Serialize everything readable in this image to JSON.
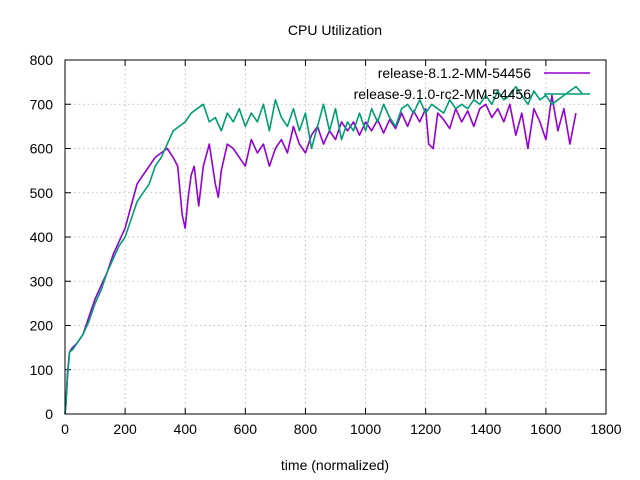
{
  "chart_data": {
    "type": "line",
    "title": "CPU Utilization",
    "xlabel": "time (normalized)",
    "ylabel": "",
    "xlim": [
      0,
      1800
    ],
    "ylim": [
      0,
      800
    ],
    "xticks": [
      "0",
      "200",
      "400",
      "600",
      "800",
      "1000",
      "1200",
      "1400",
      "1600",
      "1800"
    ],
    "yticks": [
      "0",
      "100",
      "200",
      "300",
      "400",
      "500",
      "600",
      "700",
      "800"
    ],
    "grid": true,
    "legend_position": "top-right",
    "series": [
      {
        "name": "release-8.1.2-MM-54456",
        "color": "#9400d3",
        "points": [
          [
            0,
            0
          ],
          [
            3,
            20
          ],
          [
            8,
            90
          ],
          [
            15,
            140
          ],
          [
            25,
            150
          ],
          [
            40,
            160
          ],
          [
            60,
            180
          ],
          [
            80,
            220
          ],
          [
            100,
            260
          ],
          [
            120,
            290
          ],
          [
            140,
            320
          ],
          [
            160,
            360
          ],
          [
            180,
            390
          ],
          [
            200,
            420
          ],
          [
            220,
            470
          ],
          [
            240,
            520
          ],
          [
            260,
            540
          ],
          [
            280,
            560
          ],
          [
            300,
            580
          ],
          [
            320,
            590
          ],
          [
            340,
            600
          ],
          [
            360,
            580
          ],
          [
            375,
            560
          ],
          [
            390,
            450
          ],
          [
            400,
            420
          ],
          [
            410,
            490
          ],
          [
            420,
            540
          ],
          [
            430,
            560
          ],
          [
            445,
            470
          ],
          [
            460,
            560
          ],
          [
            480,
            610
          ],
          [
            500,
            520
          ],
          [
            510,
            490
          ],
          [
            520,
            550
          ],
          [
            540,
            610
          ],
          [
            560,
            600
          ],
          [
            580,
            580
          ],
          [
            600,
            560
          ],
          [
            620,
            620
          ],
          [
            640,
            590
          ],
          [
            660,
            610
          ],
          [
            680,
            560
          ],
          [
            700,
            600
          ],
          [
            720,
            620
          ],
          [
            740,
            590
          ],
          [
            760,
            650
          ],
          [
            780,
            610
          ],
          [
            800,
            590
          ],
          [
            820,
            630
          ],
          [
            840,
            650
          ],
          [
            860,
            610
          ],
          [
            880,
            640
          ],
          [
            900,
            620
          ],
          [
            920,
            660
          ],
          [
            940,
            640
          ],
          [
            960,
            660
          ],
          [
            980,
            630
          ],
          [
            1000,
            660
          ],
          [
            1020,
            640
          ],
          [
            1040,
            665
          ],
          [
            1060,
            635
          ],
          [
            1080,
            665
          ],
          [
            1100,
            645
          ],
          [
            1120,
            680
          ],
          [
            1140,
            650
          ],
          [
            1160,
            685
          ],
          [
            1180,
            660
          ],
          [
            1200,
            690
          ],
          [
            1210,
            610
          ],
          [
            1225,
            600
          ],
          [
            1240,
            680
          ],
          [
            1260,
            665
          ],
          [
            1280,
            645
          ],
          [
            1300,
            690
          ],
          [
            1320,
            660
          ],
          [
            1340,
            685
          ],
          [
            1360,
            650
          ],
          [
            1380,
            690
          ],
          [
            1400,
            700
          ],
          [
            1420,
            670
          ],
          [
            1440,
            690
          ],
          [
            1460,
            660
          ],
          [
            1480,
            700
          ],
          [
            1500,
            630
          ],
          [
            1520,
            680
          ],
          [
            1540,
            600
          ],
          [
            1560,
            690
          ],
          [
            1580,
            660
          ],
          [
            1600,
            620
          ],
          [
            1620,
            720
          ],
          [
            1640,
            640
          ],
          [
            1660,
            690
          ],
          [
            1680,
            610
          ],
          [
            1700,
            680
          ]
        ]
      },
      {
        "name": "release-9.1.0-rc2-MM-54456",
        "color": "#009e73",
        "points": [
          [
            0,
            0
          ],
          [
            3,
            20
          ],
          [
            8,
            80
          ],
          [
            15,
            140
          ],
          [
            25,
            145
          ],
          [
            40,
            160
          ],
          [
            60,
            180
          ],
          [
            80,
            210
          ],
          [
            100,
            250
          ],
          [
            120,
            280
          ],
          [
            140,
            320
          ],
          [
            160,
            350
          ],
          [
            180,
            380
          ],
          [
            200,
            400
          ],
          [
            220,
            440
          ],
          [
            240,
            480
          ],
          [
            260,
            500
          ],
          [
            280,
            520
          ],
          [
            300,
            560
          ],
          [
            320,
            580
          ],
          [
            340,
            610
          ],
          [
            360,
            640
          ],
          [
            380,
            650
          ],
          [
            400,
            660
          ],
          [
            420,
            680
          ],
          [
            440,
            690
          ],
          [
            460,
            700
          ],
          [
            480,
            660
          ],
          [
            500,
            670
          ],
          [
            520,
            640
          ],
          [
            540,
            680
          ],
          [
            560,
            660
          ],
          [
            580,
            690
          ],
          [
            600,
            650
          ],
          [
            620,
            680
          ],
          [
            640,
            660
          ],
          [
            660,
            700
          ],
          [
            680,
            640
          ],
          [
            700,
            710
          ],
          [
            720,
            670
          ],
          [
            740,
            650
          ],
          [
            760,
            690
          ],
          [
            780,
            640
          ],
          [
            800,
            680
          ],
          [
            820,
            600
          ],
          [
            840,
            650
          ],
          [
            860,
            700
          ],
          [
            880,
            640
          ],
          [
            900,
            690
          ],
          [
            920,
            620
          ],
          [
            940,
            660
          ],
          [
            960,
            640
          ],
          [
            980,
            680
          ],
          [
            1000,
            640
          ],
          [
            1020,
            690
          ],
          [
            1040,
            660
          ],
          [
            1060,
            700
          ],
          [
            1080,
            670
          ],
          [
            1100,
            650
          ],
          [
            1120,
            690
          ],
          [
            1140,
            700
          ],
          [
            1160,
            680
          ],
          [
            1180,
            710
          ],
          [
            1200,
            680
          ],
          [
            1220,
            700
          ],
          [
            1240,
            690
          ],
          [
            1260,
            680
          ],
          [
            1280,
            710
          ],
          [
            1300,
            690
          ],
          [
            1320,
            700
          ],
          [
            1340,
            690
          ],
          [
            1360,
            710
          ],
          [
            1380,
            700
          ],
          [
            1400,
            720
          ],
          [
            1420,
            700
          ],
          [
            1440,
            730
          ],
          [
            1460,
            710
          ],
          [
            1480,
            720
          ],
          [
            1500,
            740
          ],
          [
            1520,
            720
          ],
          [
            1540,
            700
          ],
          [
            1560,
            730
          ],
          [
            1580,
            710
          ],
          [
            1600,
            720
          ],
          [
            1620,
            700
          ],
          [
            1640,
            710
          ],
          [
            1660,
            720
          ],
          [
            1680,
            730
          ],
          [
            1700,
            740
          ],
          [
            1720,
            725
          ]
        ]
      }
    ]
  }
}
